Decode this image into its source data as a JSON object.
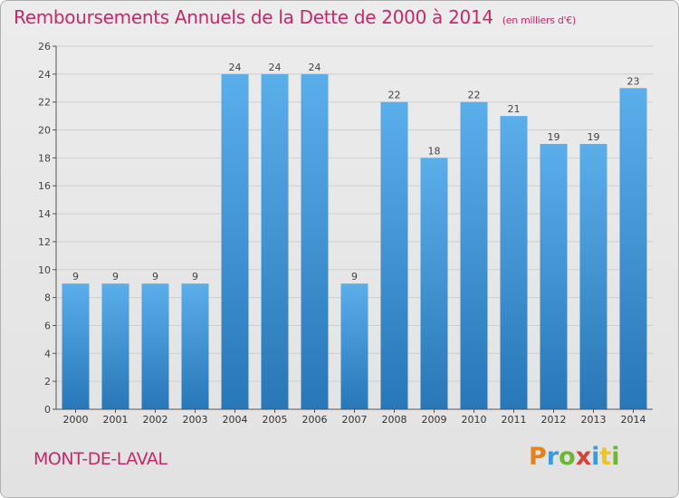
{
  "title": "Remboursements Annuels de la Dette de 2000 à 2014",
  "unit": "(en milliers d'€)",
  "commune": "MONT-DE-LAVAL",
  "logo": "Proxiti",
  "colors": {
    "title": "#c42a6b",
    "bar_light": "#5aaeea",
    "bar_dark": "#2877b8",
    "grid": "#cfcfcf"
  },
  "chart_data": {
    "type": "bar",
    "title": "Remboursements Annuels de la Dette de 2000 à 2014",
    "ylabel": "en milliers d'€",
    "xlabel": "",
    "categories": [
      "2000",
      "2001",
      "2002",
      "2003",
      "2004",
      "2005",
      "2006",
      "2007",
      "2008",
      "2009",
      "2010",
      "2011",
      "2012",
      "2013",
      "2014"
    ],
    "values": [
      9,
      9,
      9,
      9,
      24,
      24,
      24,
      9,
      22,
      18,
      22,
      21,
      19,
      19,
      23
    ],
    "ylim": [
      0,
      26
    ],
    "yticks": [
      0,
      2,
      4,
      6,
      8,
      10,
      12,
      14,
      16,
      18,
      20,
      22,
      24,
      26
    ],
    "grid": true
  }
}
